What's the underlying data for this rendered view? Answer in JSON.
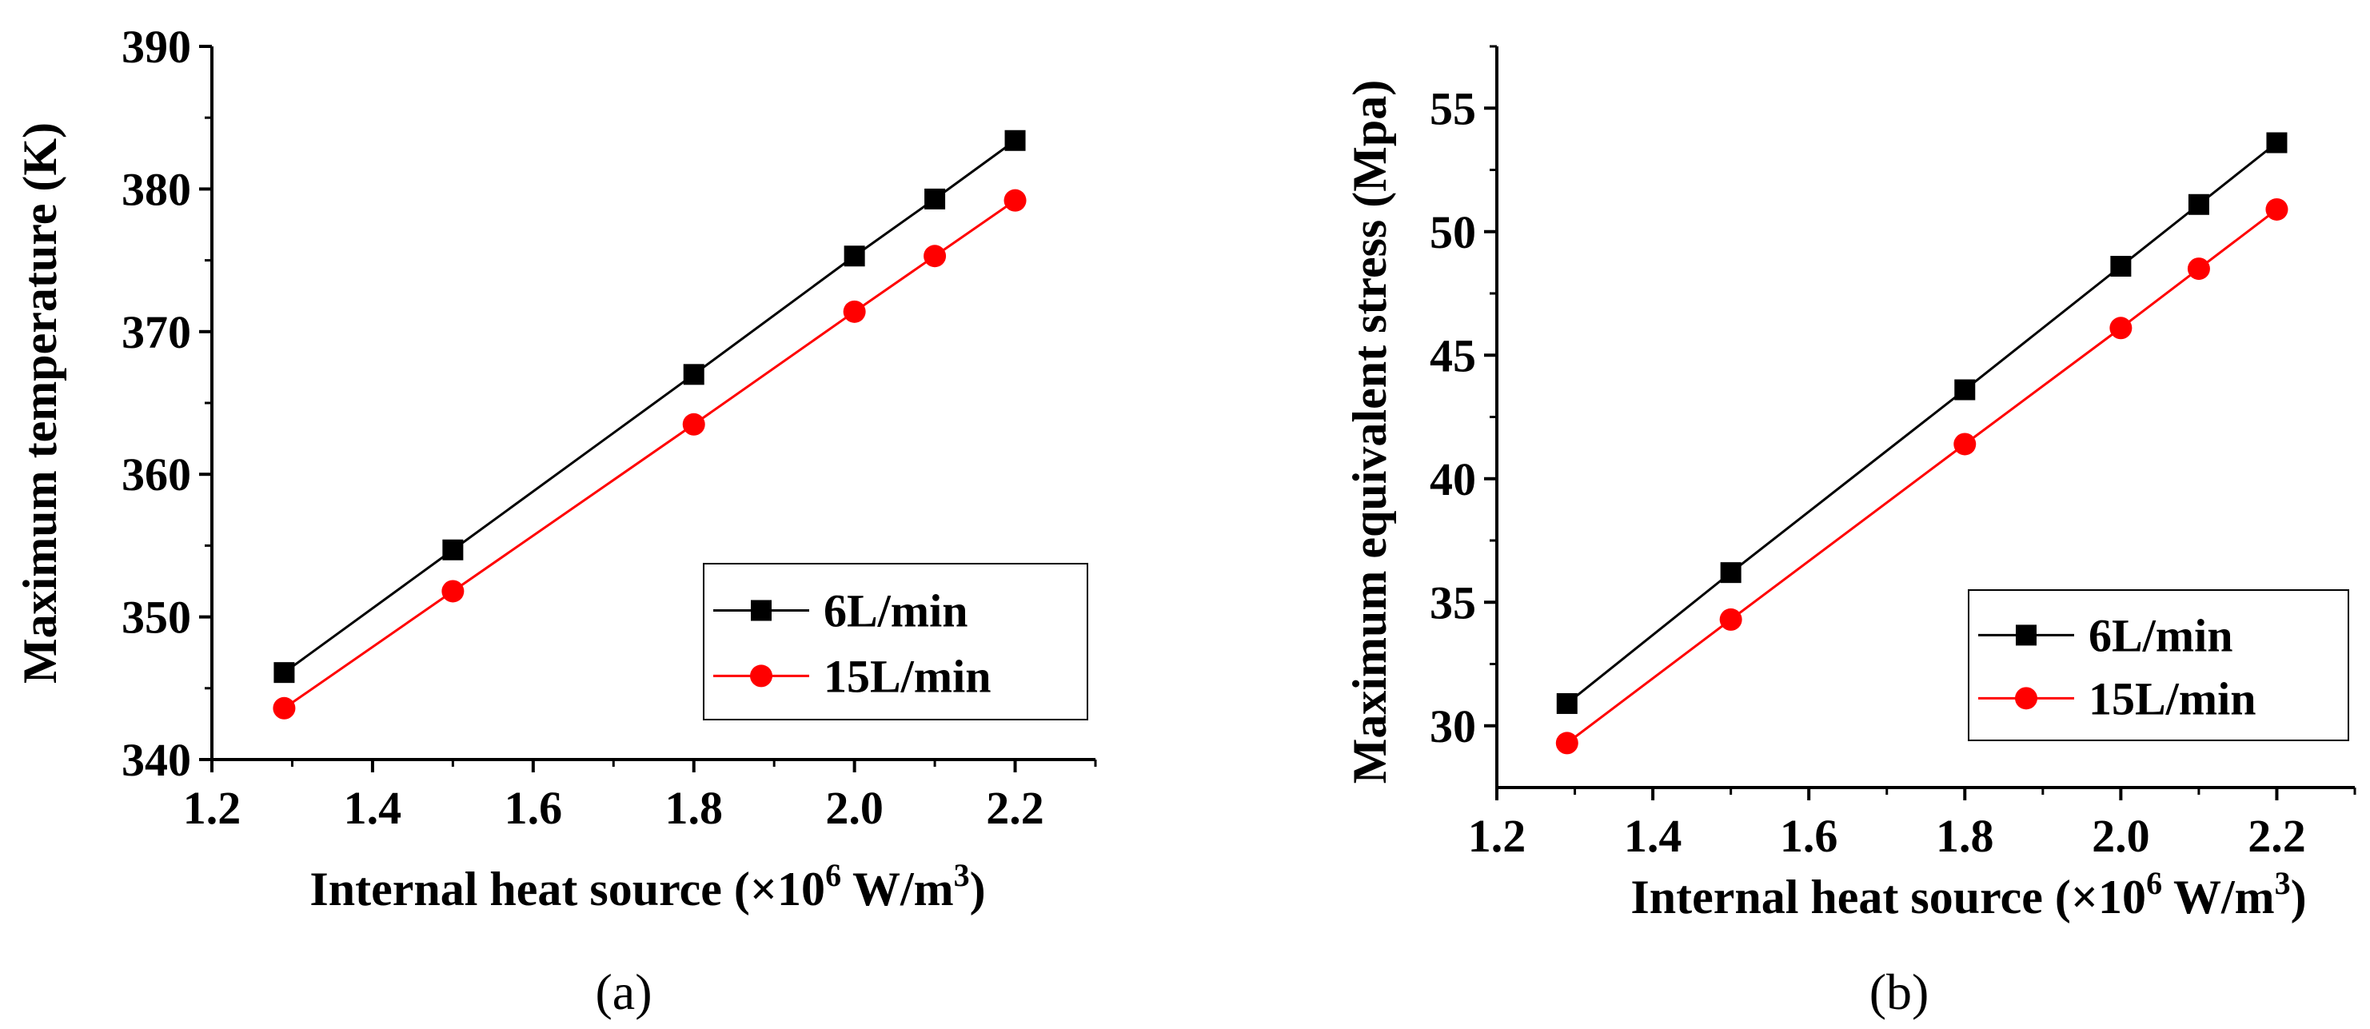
{
  "figure": {
    "panel_a_label": "(a)",
    "panel_b_label": "(b)"
  },
  "colors": {
    "series1": "#000000",
    "series2": "#ff0000",
    "axis": "#000000",
    "background": "#ffffff"
  },
  "chart_data": [
    {
      "type": "line",
      "panel": "(a)",
      "title": "",
      "xlabel_main": "Internal heat source (×10",
      "xlabel_sup1": "6",
      "xlabel_mid": " W/m",
      "xlabel_sup2": "3",
      "xlabel_end": ")",
      "ylabel": "Maximum temperature (K)",
      "x": [
        1.29,
        1.5,
        1.8,
        2.0,
        2.1,
        2.2
      ],
      "xlim": [
        1.2,
        2.3
      ],
      "ylim": [
        340,
        390
      ],
      "xticks": [
        "1.2",
        "1.4",
        "1.6",
        "1.8",
        "2.0",
        "2.2"
      ],
      "xtick_values": [
        1.2,
        1.4,
        1.6,
        1.8,
        2.0,
        2.2
      ],
      "yticks": [
        "340",
        "350",
        "360",
        "370",
        "380",
        "390"
      ],
      "ytick_values": [
        340,
        350,
        360,
        370,
        380,
        390
      ],
      "legend_position": "lower-right",
      "series": [
        {
          "name": "6L/min",
          "marker": "square",
          "color": "#000000",
          "values": [
            346.1,
            354.7,
            367.0,
            375.3,
            379.3,
            383.4
          ]
        },
        {
          "name": "15L/min",
          "marker": "circle",
          "color": "#ff0000",
          "values": [
            343.6,
            351.8,
            363.5,
            371.4,
            375.3,
            379.2
          ]
        }
      ]
    },
    {
      "type": "line",
      "panel": "(b)",
      "title": "",
      "xlabel_main": "Internal heat source (×10",
      "xlabel_sup1": "6",
      "xlabel_mid": " W/m",
      "xlabel_sup2": "3",
      "xlabel_end": ")",
      "ylabel": "Maximum equivalent stress (Mpa)",
      "x": [
        1.29,
        1.5,
        1.8,
        2.0,
        2.1,
        2.2
      ],
      "xlim": [
        1.2,
        2.3
      ],
      "ylim": [
        27.5,
        57.5
      ],
      "xticks": [
        "1.2",
        "1.4",
        "1.6",
        "1.8",
        "2.0",
        "2.2"
      ],
      "xtick_values": [
        1.2,
        1.4,
        1.6,
        1.8,
        2.0,
        2.2
      ],
      "yticks": [
        "30",
        "35",
        "40",
        "45",
        "50",
        "55"
      ],
      "ytick_values": [
        30,
        35,
        40,
        45,
        50,
        55
      ],
      "legend_position": "lower-right",
      "series": [
        {
          "name": "6L/min",
          "marker": "square",
          "color": "#000000",
          "values": [
            30.9,
            36.2,
            43.6,
            48.6,
            51.1,
            53.6
          ]
        },
        {
          "name": "15L/min",
          "marker": "circle",
          "color": "#ff0000",
          "values": [
            29.3,
            34.3,
            41.4,
            46.1,
            48.5,
            50.9
          ]
        }
      ]
    }
  ]
}
